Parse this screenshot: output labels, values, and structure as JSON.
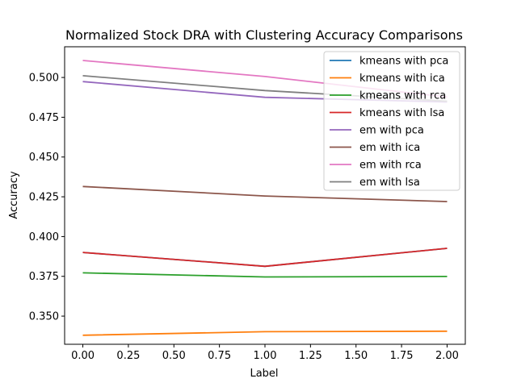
{
  "chart_data": {
    "type": "line",
    "title": "Normalized Stock DRA with Clustering Accuracy Comparisons",
    "xlabel": "Label",
    "ylabel": "Accuracy",
    "x": [
      0,
      1,
      2
    ],
    "xlim": [
      -0.1,
      2.1
    ],
    "ylim": [
      0.3323,
      0.5193
    ],
    "xticks": [
      0.0,
      0.25,
      0.5,
      0.75,
      1.0,
      1.25,
      1.5,
      1.75,
      2.0
    ],
    "xtick_labels": [
      "0.00",
      "0.25",
      "0.50",
      "0.75",
      "1.00",
      "1.25",
      "1.50",
      "1.75",
      "2.00"
    ],
    "yticks": [
      0.35,
      0.375,
      0.4,
      0.425,
      0.45,
      0.475,
      0.5
    ],
    "ytick_labels": [
      "0.350",
      "0.375",
      "0.400",
      "0.425",
      "0.450",
      "0.475",
      "0.500"
    ],
    "grid": false,
    "legend_position": "top-right",
    "series": [
      {
        "name": "kmeans with pca",
        "color": "#1f77b4",
        "values": [
          0.39,
          0.3813,
          0.3926
        ]
      },
      {
        "name": "kmeans with ica",
        "color": "#ff7f0e",
        "values": [
          0.338,
          0.3402,
          0.3405
        ]
      },
      {
        "name": "kmeans with rca",
        "color": "#2ca02c",
        "values": [
          0.3772,
          0.3746,
          0.3749
        ]
      },
      {
        "name": "kmeans with lsa",
        "color": "#d62728",
        "values": [
          0.39,
          0.3813,
          0.3926
        ]
      },
      {
        "name": "em with pca",
        "color": "#9467bd",
        "values": [
          0.4974,
          0.4875,
          0.4846
        ]
      },
      {
        "name": "em with ica",
        "color": "#8c564b",
        "values": [
          0.4315,
          0.4255,
          0.422
        ]
      },
      {
        "name": "em with rca",
        "color": "#e377c2",
        "values": [
          0.5107,
          0.5006,
          0.4877
        ]
      },
      {
        "name": "em with lsa",
        "color": "#7f7f7f",
        "values": [
          0.5011,
          0.4918,
          0.4851
        ]
      }
    ]
  }
}
